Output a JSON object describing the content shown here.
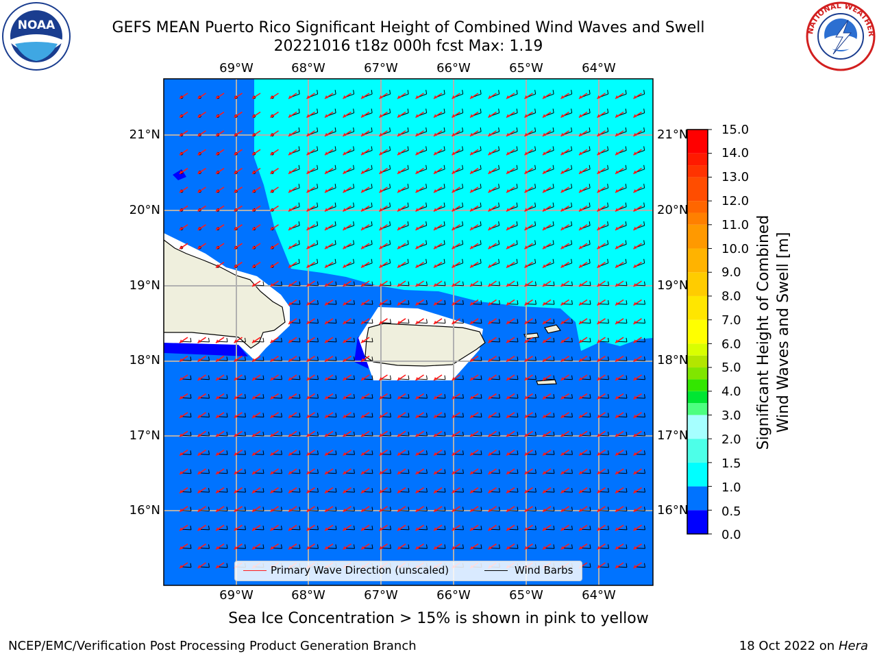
{
  "title": {
    "line1": "GEFS MEAN Puerto Rico Significant Height of Combined Wind Waves and Swell",
    "line2": "20221016 t18z 000h fcst   Max: 1.19"
  },
  "logos": {
    "left": {
      "text": "NOAA",
      "icon": "noaa-logo-icon"
    },
    "right": {
      "text": "NATIONAL WEATHER SERVICE",
      "icon": "nws-logo-icon"
    }
  },
  "map": {
    "lon_labels": [
      "69°W",
      "68°W",
      "67°W",
      "66°W",
      "65°W",
      "64°W"
    ],
    "lat_labels": [
      "21°N",
      "20°N",
      "19°N",
      "18°N",
      "17°N",
      "16°N"
    ],
    "extent": {
      "lon_min": -69.9,
      "lon_max": -63.35,
      "lat_min": 15.05,
      "lat_max": 21.75
    },
    "field": "significant wave height (0.5–1.0 m over most of the domain, 1.0–1.5 m north-east)",
    "colors": {
      "below_0_5": "#0000ff",
      "from_0_5_to_1_0": "#0073ff",
      "from_1_0_to_1_5": "#00ffff",
      "land": "#efefdd",
      "ocean_mask": "#ffffff",
      "arrow": "#ff1a1a",
      "barb": "#000000"
    }
  },
  "colorbar": {
    "title_line1": "Significant Height of Combined",
    "title_line2": "Wind Waves and Swell [m]",
    "ticks": [
      "0.0",
      "0.5",
      "1.0",
      "1.5",
      "2.0",
      "2.5",
      "3.0",
      "3.5",
      "4.0",
      "4.5",
      "5.0",
      "5.5",
      "6.0",
      "6.5",
      "7.0",
      "7.5",
      "8.0",
      "8.5",
      "9.0",
      "9.5",
      "10.0",
      "10.5",
      "11.0",
      "11.5",
      "12.0",
      "12.5",
      "13.0",
      "13.5",
      "14.0",
      "14.5",
      "15.0"
    ],
    "tick_labels": [
      "0.0",
      "0.5",
      "1.0",
      "1.5",
      "2.0",
      "3.0",
      "4.0",
      "5.0",
      "6.0",
      "7.0",
      "8.0",
      "9.0",
      "10.0",
      "11.0",
      "12.0",
      "13.0",
      "14.0",
      "15.0"
    ],
    "colors": [
      "#0000ff",
      "#0073ff",
      "#00ffff",
      "#4dffe8",
      "#a6ffff",
      "#4dff80",
      "#00e633",
      "#33e600",
      "#80e600",
      "#b3e600",
      "#d9ff00",
      "#ffff00",
      "#ffe600",
      "#ffcc00",
      "#ffb300",
      "#ff9900",
      "#ff8000",
      "#ff6600",
      "#ff4d00",
      "#ff3300",
      "#ff1a00",
      "#ff0000"
    ]
  },
  "legend": {
    "primary_wave": "Primary Wave Direction (unscaled)",
    "wind_barbs": "Wind Barbs"
  },
  "notes": {
    "sea_ice": "Sea Ice Concentration > 15% is shown in pink to yellow"
  },
  "footer": {
    "left": "NCEP/EMC/Verification Post Processing Product Generation Branch",
    "right_prefix": "18 Oct 2022 on ",
    "right_host": "Hera"
  }
}
